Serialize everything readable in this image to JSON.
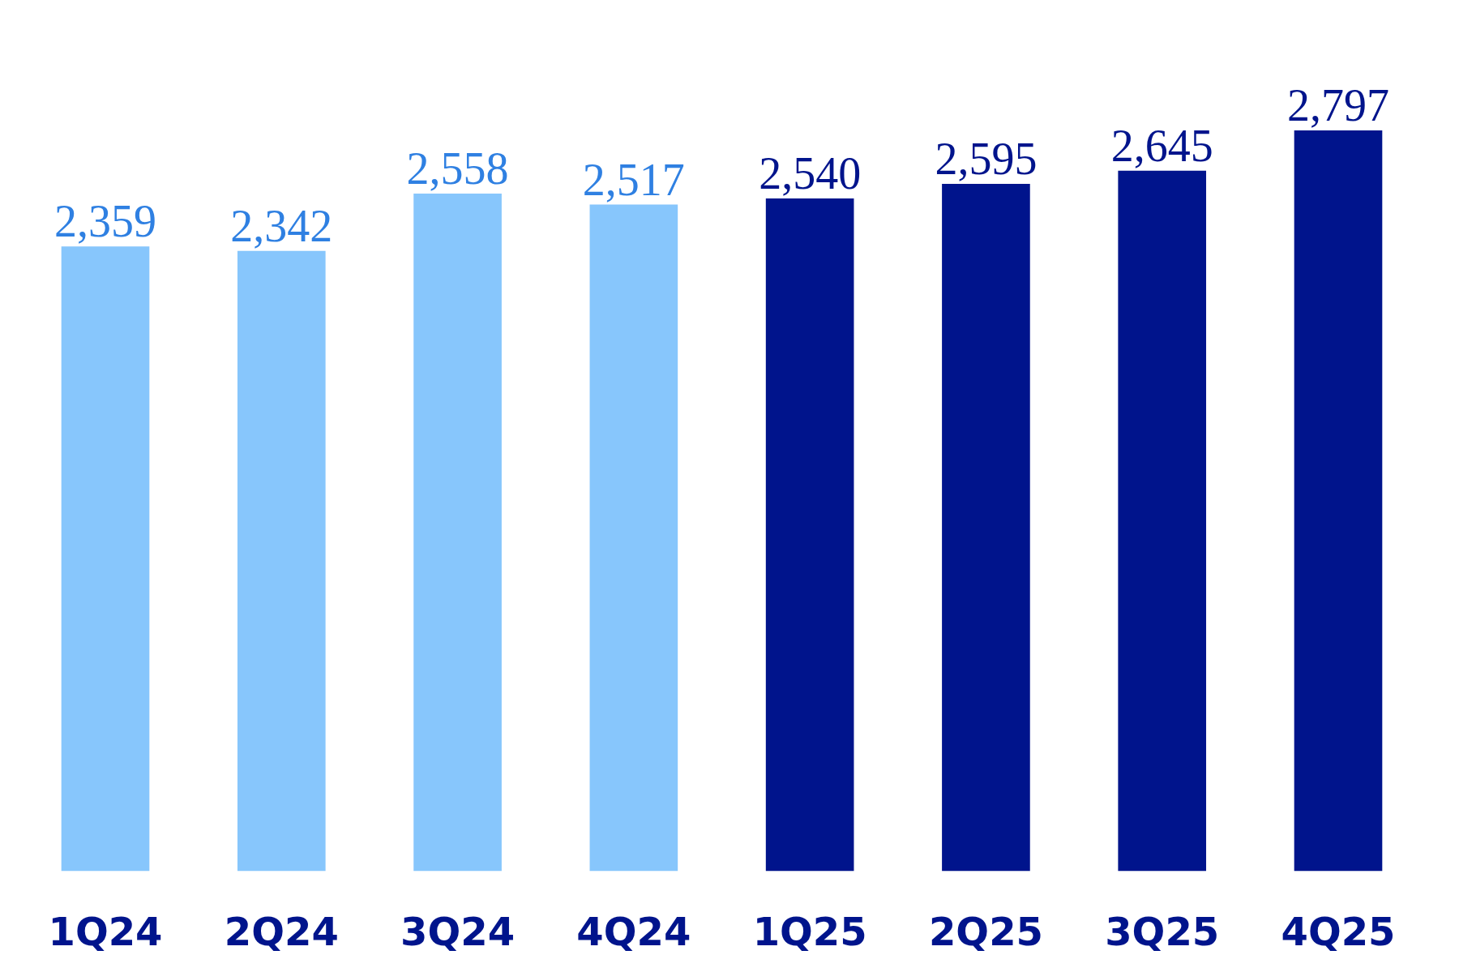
{
  "chart_data": {
    "type": "bar",
    "categories": [
      "1Q24",
      "2Q24",
      "3Q24",
      "4Q24",
      "1Q25",
      "2Q25",
      "3Q25",
      "4Q25"
    ],
    "values": [
      2359,
      2342,
      2558,
      2517,
      2540,
      2595,
      2645,
      2797
    ],
    "value_labels": [
      "2,359",
      "2,342",
      "2,558",
      "2,517",
      "2,540",
      "2,595",
      "2,645",
      "2,797"
    ],
    "colors": [
      "#87c6fc",
      "#87c6fc",
      "#87c6fc",
      "#87c6fc",
      "#00148c",
      "#00148c",
      "#00148c",
      "#00148c"
    ],
    "tick_labels": "x"
  }
}
